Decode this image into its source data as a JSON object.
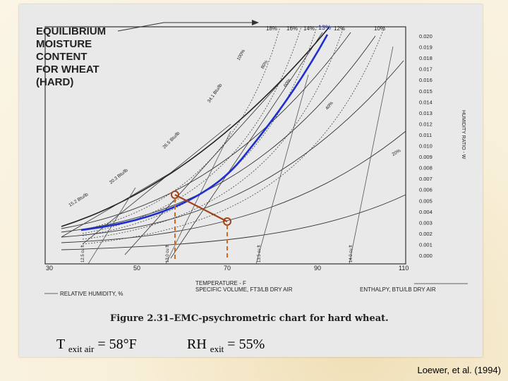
{
  "chart": {
    "title": "EQUILIBRIUM\nMOISTURE\nCONTENT\nFOR WHEAT\n(HARD)",
    "caption": "Figure 2.31–EMC-psychrometric chart for hard wheat.",
    "temperature_ticks": [
      "30",
      "50",
      "70",
      "90",
      "110"
    ],
    "humidity_ratio_ticks": [
      "0.020",
      "0.019",
      "0.018",
      "0.017",
      "0.016",
      "0.015",
      "0.014",
      "0.013",
      "0.012",
      "0.011",
      "0.010",
      "0.009",
      "0.008",
      "0.007",
      "0.006",
      "0.005",
      "0.004",
      "0.003",
      "0.002",
      "0.001",
      "0.000"
    ],
    "humidity_ratio_label": "HUMIDITY RATIO - W",
    "temperature_label": "TEMPERATURE - F",
    "specific_volume_label": "SPECIFIC VOLUME, FT3/LB DRY AIR",
    "relative_humidity_label": "RELATIVE HUMIDITY, %",
    "enthalpy_label": "ENTHALPY, BTU/LB DRY AIR",
    "emc_labels": [
      "18%",
      "16%",
      "14%",
      "13%",
      "12%",
      "10%"
    ],
    "highlighted_emc": "13%",
    "enthalpy_labels": [
      "15.2 Btu/lb",
      "20.3 Btu/lb",
      "26.5 Btu/lb",
      "34.1 Btu/lb"
    ],
    "rh_labels": [
      "100%",
      "80%",
      "60%",
      "40%",
      "20%"
    ],
    "specific_volume_labels": [
      "12.5 cu ft",
      "13.0 cu ft",
      "13.5 cu ft",
      "14.0 cu ft"
    ]
  },
  "results": {
    "t_main": "T",
    "t_sub": "exit air",
    "t_value": "= 58°F",
    "rh_main": "RH",
    "rh_sub": "exit",
    "rh_value": "= 55%"
  },
  "citation": "Loewer, et al. (1994)",
  "colors": {
    "emc_curve": "#1f2fd0",
    "process_line": "#a0441c",
    "drop_line": "#d2691e"
  }
}
